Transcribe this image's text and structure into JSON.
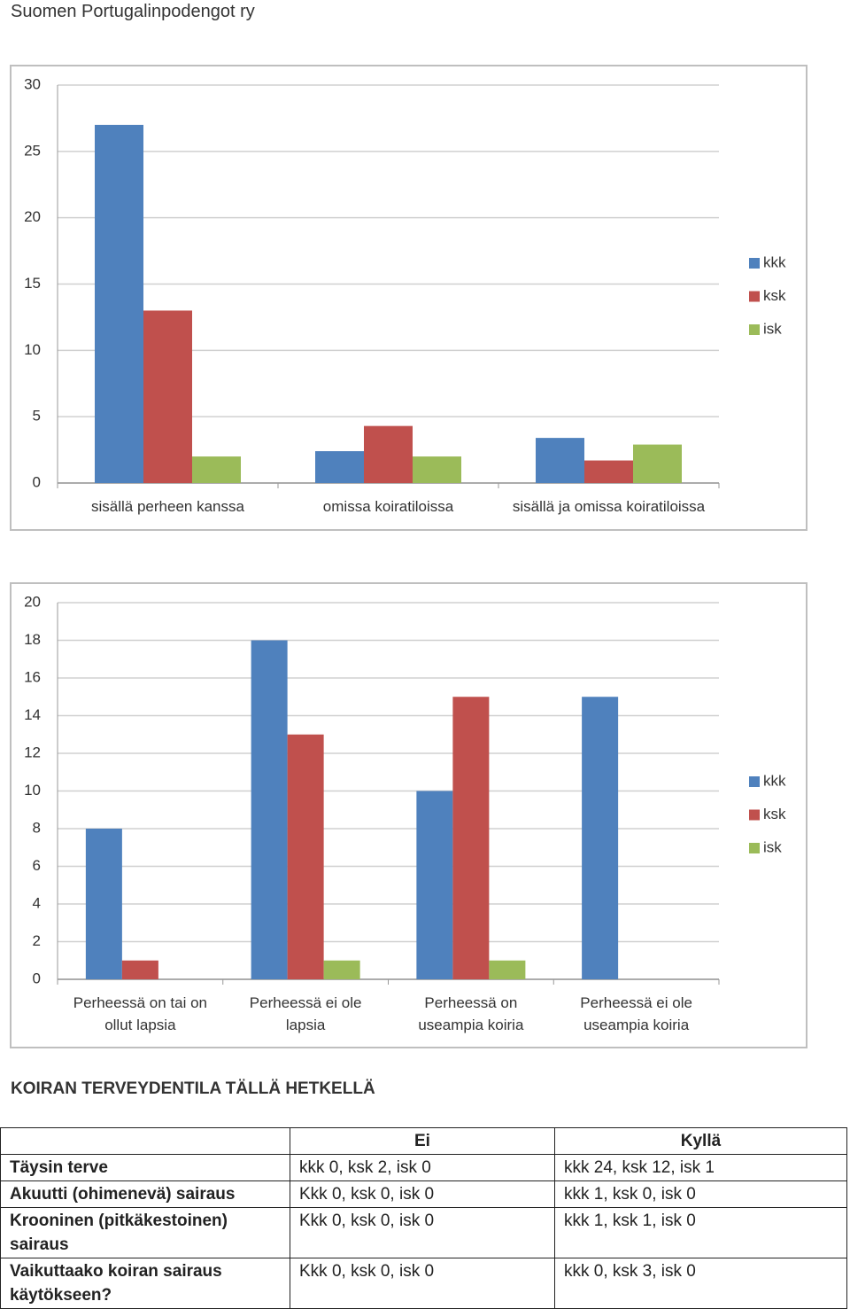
{
  "header": {
    "title": "Suomen Portugalinpodengot ry"
  },
  "chart_data": [
    {
      "type": "bar",
      "categories": [
        "sisällä perheen kanssa",
        "omissa koiratiloissa",
        "sisällä ja omissa koiratiloissa"
      ],
      "series": [
        {
          "name": "kkk",
          "color": "#4f81bd",
          "values": [
            27,
            2.4,
            3.4
          ]
        },
        {
          "name": "ksk",
          "color": "#c0504d",
          "values": [
            13,
            4.3,
            1.7
          ]
        },
        {
          "name": "isk",
          "color": "#9bbb59",
          "values": [
            2,
            2,
            2.9
          ]
        }
      ],
      "ylim": [
        0,
        30
      ],
      "yticks": [
        0,
        5,
        10,
        15,
        20,
        25,
        30
      ],
      "grid": true,
      "legend": "right"
    },
    {
      "type": "bar",
      "categories": [
        "Perheessä on tai on ollut lapsia",
        "Perheessä ei ole lapsia",
        "Perheessä on useampia koiria",
        "Perheessä ei ole useampia koiria"
      ],
      "series": [
        {
          "name": "kkk",
          "color": "#4f81bd",
          "values": [
            8,
            18,
            10,
            15
          ]
        },
        {
          "name": "ksk",
          "color": "#c0504d",
          "values": [
            1,
            13,
            15,
            0
          ]
        },
        {
          "name": "isk",
          "color": "#9bbb59",
          "values": [
            0,
            1,
            1,
            0
          ]
        }
      ],
      "ylim": [
        0,
        20
      ],
      "yticks": [
        0,
        2,
        4,
        6,
        8,
        10,
        12,
        14,
        16,
        18,
        20
      ],
      "grid": true,
      "legend": "right"
    }
  ],
  "section_title": "KOIRAN TERVEYDENTILA TÄLLÄ HETKELLÄ",
  "table": {
    "columns": [
      "Ei",
      "Kyllä"
    ],
    "rows": [
      [
        "Täysin terve",
        "kkk 0, ksk 2, isk 0",
        "kkk 24, ksk 12, isk 1"
      ],
      [
        "Akuutti (ohimenevä) sairaus",
        "Kkk 0, ksk 0, isk 0",
        "kkk 1, ksk 0, isk 0"
      ],
      [
        "Krooninen (pitkäkestoinen) sairaus",
        "Kkk 0, ksk 0, isk 0",
        "kkk 1, ksk 1, isk 0"
      ],
      [
        "Vaikuttaako koiran sairaus käytökseen?",
        "Kkk 0, ksk 0, isk 0",
        "kkk 0, ksk 3, isk 0"
      ]
    ]
  }
}
